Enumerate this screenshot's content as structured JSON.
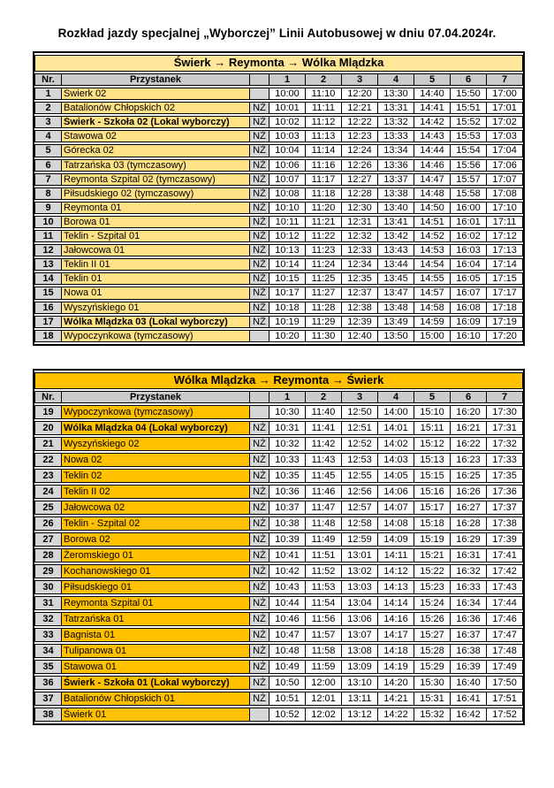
{
  "title": "Rozkład jazdy specjalnej „Wyborczej” Linii Autobusowej w dniu 07.04.2024r.",
  "flag_label": "NŻ",
  "tables": [
    {
      "direction": "Świerk → Reymonta → Wólka Mlądzka",
      "header_bg": "#FFE699",
      "stop_bg": "#FFE285",
      "col_headers": {
        "nr": "Nr.",
        "stop": "Przystanek",
        "flag": "",
        "runs": [
          "1",
          "2",
          "3",
          "4",
          "5",
          "6",
          "7"
        ]
      },
      "rows": [
        {
          "nr": "1",
          "stop": "Świerk 02",
          "flag": "",
          "bold": false,
          "times": [
            "10:00",
            "11:10",
            "12:20",
            "13:30",
            "14:40",
            "15:50",
            "17:00"
          ]
        },
        {
          "nr": "2",
          "stop": "Batalionów Chłopskich 02",
          "flag": "NŻ",
          "bold": false,
          "times": [
            "10:01",
            "11:11",
            "12:21",
            "13:31",
            "14:41",
            "15:51",
            "17:01"
          ]
        },
        {
          "nr": "3",
          "stop": "Świerk - Szkoła 02 (Lokal wyborczy)",
          "flag": "NŻ",
          "bold": true,
          "times": [
            "10:02",
            "11:12",
            "12:22",
            "13:32",
            "14:42",
            "15:52",
            "17:02"
          ]
        },
        {
          "nr": "4",
          "stop": "Stawowa 02",
          "flag": "NŻ",
          "bold": false,
          "times": [
            "10:03",
            "11:13",
            "12:23",
            "13:33",
            "14:43",
            "15:53",
            "17:03"
          ]
        },
        {
          "nr": "5",
          "stop": "Górecka 02",
          "flag": "NŻ",
          "bold": false,
          "times": [
            "10:04",
            "11:14",
            "12:24",
            "13:34",
            "14:44",
            "15:54",
            "17:04"
          ]
        },
        {
          "nr": "6",
          "stop": "Tatrzańska 03 (tymczasowy)",
          "flag": "NŻ",
          "bold": false,
          "times": [
            "10:06",
            "11:16",
            "12:26",
            "13:36",
            "14:46",
            "15:56",
            "17:06"
          ]
        },
        {
          "nr": "7",
          "stop": "Reymonta Szpital 02 (tymczasowy)",
          "flag": "NŻ",
          "bold": false,
          "times": [
            "10:07",
            "11:17",
            "12:27",
            "13:37",
            "14:47",
            "15:57",
            "17:07"
          ]
        },
        {
          "nr": "8",
          "stop": "Piłsudskiego 02 (tymczasowy)",
          "flag": "NŻ",
          "bold": false,
          "times": [
            "10:08",
            "11:18",
            "12:28",
            "13:38",
            "14:48",
            "15:58",
            "17:08"
          ]
        },
        {
          "nr": "9",
          "stop": "Reymonta 01",
          "flag": "NŻ",
          "bold": false,
          "times": [
            "10:10",
            "11:20",
            "12:30",
            "13:40",
            "14:50",
            "16:00",
            "17:10"
          ]
        },
        {
          "nr": "10",
          "stop": "Borowa 01",
          "flag": "NŻ",
          "bold": false,
          "times": [
            "10:11",
            "11:21",
            "12:31",
            "13:41",
            "14:51",
            "16:01",
            "17:11"
          ]
        },
        {
          "nr": "11",
          "stop": "Teklin - Szpital 01",
          "flag": "NŻ",
          "bold": false,
          "times": [
            "10:12",
            "11:22",
            "12:32",
            "13:42",
            "14:52",
            "16:02",
            "17:12"
          ]
        },
        {
          "nr": "12",
          "stop": "Jałowcowa 01",
          "flag": "NŻ",
          "bold": false,
          "times": [
            "10:13",
            "11:23",
            "12:33",
            "13:43",
            "14:53",
            "16:03",
            "17:13"
          ]
        },
        {
          "nr": "13",
          "stop": "Teklin II 01",
          "flag": "NŻ",
          "bold": false,
          "times": [
            "10:14",
            "11:24",
            "12:34",
            "13:44",
            "14:54",
            "16:04",
            "17:14"
          ]
        },
        {
          "nr": "14",
          "stop": "Teklin 01",
          "flag": "NŻ",
          "bold": false,
          "times": [
            "10:15",
            "11:25",
            "12:35",
            "13:45",
            "14:55",
            "16:05",
            "17:15"
          ]
        },
        {
          "nr": "15",
          "stop": "Nowa 01",
          "flag": "NŻ",
          "bold": false,
          "times": [
            "10:17",
            "11:27",
            "12:37",
            "13:47",
            "14:57",
            "16:07",
            "17:17"
          ]
        },
        {
          "nr": "16",
          "stop": "Wyszyńskiego 01",
          "flag": "NŻ",
          "bold": false,
          "times": [
            "10:18",
            "11:28",
            "12:38",
            "13:48",
            "14:58",
            "16:08",
            "17:18"
          ]
        },
        {
          "nr": "17",
          "stop": "Wólka Mlądzka 03 (Lokal wyborczy)",
          "flag": "NŻ",
          "bold": true,
          "times": [
            "10:19",
            "11:29",
            "12:39",
            "13:49",
            "14:59",
            "16:09",
            "17:19"
          ]
        },
        {
          "nr": "18",
          "stop": "Wypoczynkowa (tymczasowy)",
          "flag": "",
          "bold": false,
          "times": [
            "10:20",
            "11:30",
            "12:40",
            "13:50",
            "15:00",
            "16:10",
            "17:20"
          ]
        }
      ]
    },
    {
      "direction": "Wólka Mlądzka → Reymonta → Świerk",
      "header_bg": "#FFC000",
      "stop_bg": "#FFC000",
      "col_headers": {
        "nr": "Nr.",
        "stop": "Przystanek",
        "flag": "",
        "runs": [
          "1",
          "2",
          "3",
          "4",
          "5",
          "6",
          "7"
        ]
      },
      "rows": [
        {
          "nr": "19",
          "stop": "Wypoczynkowa (tymczasowy)",
          "flag": "",
          "bold": false,
          "times": [
            "10:30",
            "11:40",
            "12:50",
            "14:00",
            "15:10",
            "16:20",
            "17:30"
          ]
        },
        {
          "nr": "20",
          "stop": "Wólka Mlądzka 04 (Lokal wyborczy)",
          "flag": "NŻ",
          "bold": true,
          "times": [
            "10:31",
            "11:41",
            "12:51",
            "14:01",
            "15:11",
            "16:21",
            "17:31"
          ]
        },
        {
          "nr": "21",
          "stop": "Wyszyńskiego 02",
          "flag": "NŻ",
          "bold": false,
          "times": [
            "10:32",
            "11:42",
            "12:52",
            "14:02",
            "15:12",
            "16:22",
            "17:32"
          ]
        },
        {
          "nr": "22",
          "stop": "Nowa 02",
          "flag": "NŻ",
          "bold": false,
          "times": [
            "10:33",
            "11:43",
            "12:53",
            "14:03",
            "15:13",
            "16:23",
            "17:33"
          ]
        },
        {
          "nr": "23",
          "stop": "Teklin 02",
          "flag": "NŻ",
          "bold": false,
          "times": [
            "10:35",
            "11:45",
            "12:55",
            "14:05",
            "15:15",
            "16:25",
            "17:35"
          ]
        },
        {
          "nr": "24",
          "stop": "Teklin II 02",
          "flag": "NŻ",
          "bold": false,
          "times": [
            "10:36",
            "11:46",
            "12:56",
            "14:06",
            "15:16",
            "16:26",
            "17:36"
          ]
        },
        {
          "nr": "25",
          "stop": "Jałowcowa 02",
          "flag": "NŻ",
          "bold": false,
          "times": [
            "10:37",
            "11:47",
            "12:57",
            "14:07",
            "15:17",
            "16:27",
            "17:37"
          ]
        },
        {
          "nr": "26",
          "stop": "Teklin - Szpital 02",
          "flag": "NŻ",
          "bold": false,
          "times": [
            "10:38",
            "11:48",
            "12:58",
            "14:08",
            "15:18",
            "16:28",
            "17:38"
          ]
        },
        {
          "nr": "27",
          "stop": "Borowa 02",
          "flag": "NŻ",
          "bold": false,
          "times": [
            "10:39",
            "11:49",
            "12:59",
            "14:09",
            "15:19",
            "16:29",
            "17:39"
          ]
        },
        {
          "nr": "28",
          "stop": "Żeromskiego 01",
          "flag": "NŻ",
          "bold": false,
          "times": [
            "10:41",
            "11:51",
            "13:01",
            "14:11",
            "15:21",
            "16:31",
            "17:41"
          ]
        },
        {
          "nr": "29",
          "stop": "Kochanowskiego 01",
          "flag": "NŻ",
          "bold": false,
          "times": [
            "10:42",
            "11:52",
            "13:02",
            "14:12",
            "15:22",
            "16:32",
            "17:42"
          ]
        },
        {
          "nr": "30",
          "stop": "Piłsudskiego 01",
          "flag": "NŻ",
          "bold": false,
          "times": [
            "10:43",
            "11:53",
            "13:03",
            "14:13",
            "15:23",
            "16:33",
            "17:43"
          ]
        },
        {
          "nr": "31",
          "stop": "Reymonta Szpital 01",
          "flag": "NŻ",
          "bold": false,
          "times": [
            "10:44",
            "11:54",
            "13:04",
            "14:14",
            "15:24",
            "16:34",
            "17:44"
          ]
        },
        {
          "nr": "32",
          "stop": "Tatrzańska 01",
          "flag": "NŻ",
          "bold": false,
          "times": [
            "10:46",
            "11:56",
            "13:06",
            "14:16",
            "15:26",
            "16:36",
            "17:46"
          ]
        },
        {
          "nr": "33",
          "stop": "Bagnista 01",
          "flag": "NŻ",
          "bold": false,
          "times": [
            "10:47",
            "11:57",
            "13:07",
            "14:17",
            "15:27",
            "16:37",
            "17:47"
          ]
        },
        {
          "nr": "34",
          "stop": "Tulipanowa 01",
          "flag": "NŻ",
          "bold": false,
          "times": [
            "10:48",
            "11:58",
            "13:08",
            "14:18",
            "15:28",
            "16:38",
            "17:48"
          ]
        },
        {
          "nr": "35",
          "stop": "Stawowa 01",
          "flag": "NŻ",
          "bold": false,
          "times": [
            "10:49",
            "11:59",
            "13:09",
            "14:19",
            "15:29",
            "16:39",
            "17:49"
          ]
        },
        {
          "nr": "36",
          "stop": "Świerk - Szkoła 01 (Lokal wyborczy)",
          "flag": "NŻ",
          "bold": true,
          "times": [
            "10:50",
            "12:00",
            "13:10",
            "14:20",
            "15:30",
            "16:40",
            "17:50"
          ]
        },
        {
          "nr": "37",
          "stop": "Batalionów Chłopskich 01",
          "flag": "NŻ",
          "bold": false,
          "times": [
            "10:51",
            "12:01",
            "13:11",
            "14:21",
            "15:31",
            "16:41",
            "17:51"
          ]
        },
        {
          "nr": "38",
          "stop": "Świerk 01",
          "flag": "",
          "bold": false,
          "times": [
            "10:52",
            "12:02",
            "13:12",
            "14:22",
            "15:32",
            "16:42",
            "17:52"
          ]
        }
      ]
    }
  ]
}
